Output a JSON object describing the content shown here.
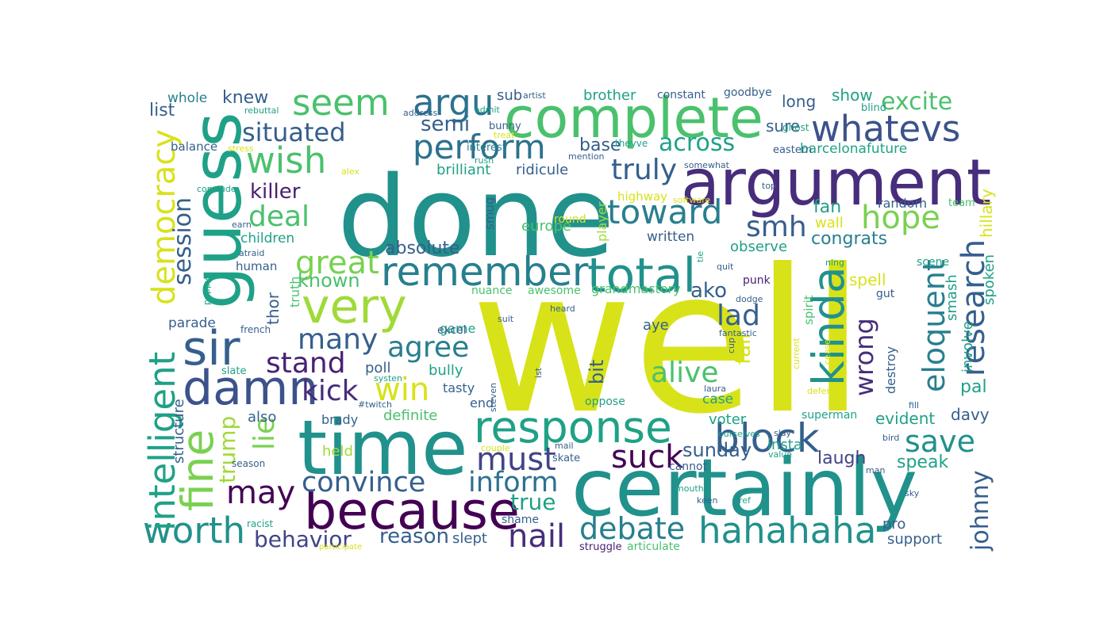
{
  "palette": {
    "yellow": "#d8e219",
    "lime": "#a0da39",
    "green": "#7ad151",
    "emerald": "#4ac16d",
    "sea": "#2db27d",
    "teal": "#1fa187",
    "cyan": "#21918c",
    "steel": "#277f8e",
    "blue": "#2c728e",
    "navy": "#355f8d",
    "indigo": "#3b528b",
    "violet": "#414487",
    "purple": "#472d7b",
    "deep": "#482173",
    "dark": "#440154"
  },
  "words": [
    {
      "text": "well",
      "color": "yellow"
    },
    {
      "text": "done",
      "color": "cyan"
    },
    {
      "text": "time",
      "color": "cyan"
    },
    {
      "text": "certainly",
      "color": "cyan"
    },
    {
      "text": "guess",
      "color": "teal"
    },
    {
      "text": "argument",
      "color": "purple"
    },
    {
      "text": "complete",
      "color": "emerald"
    },
    {
      "text": "because",
      "color": "dark"
    },
    {
      "text": "very",
      "color": "lime"
    },
    {
      "text": "response",
      "color": "teal"
    },
    {
      "text": "total",
      "color": "cyan"
    },
    {
      "text": "hahahaha",
      "color": "cyan"
    },
    {
      "text": "damn",
      "color": "indigo"
    },
    {
      "text": "sir",
      "color": "navy"
    },
    {
      "text": "kinda",
      "color": "cyan"
    },
    {
      "text": "block",
      "color": "navy"
    },
    {
      "text": "whatevs",
      "color": "indigo"
    },
    {
      "text": "remember",
      "color": "steel"
    },
    {
      "text": "fine",
      "color": "green"
    },
    {
      "text": "worth",
      "color": "cyan"
    },
    {
      "text": "intelligent",
      "color": "teal"
    },
    {
      "text": "democracy",
      "color": "yellow"
    },
    {
      "text": "seem",
      "color": "emerald"
    },
    {
      "text": "argu",
      "color": "blue"
    },
    {
      "text": "perform",
      "color": "blue"
    },
    {
      "text": "toward",
      "color": "steel"
    },
    {
      "text": "research",
      "color": "navy"
    },
    {
      "text": "eloquent",
      "color": "steel"
    },
    {
      "text": "save",
      "color": "cyan"
    },
    {
      "text": "nail",
      "color": "purple"
    },
    {
      "text": "debate",
      "color": "steel"
    },
    {
      "text": "convince",
      "color": "navy"
    },
    {
      "text": "inform",
      "color": "blue"
    },
    {
      "text": "wish",
      "color": "emerald"
    },
    {
      "text": "hope",
      "color": "green"
    },
    {
      "text": "suck",
      "color": "dark"
    },
    {
      "text": "must",
      "color": "violet"
    },
    {
      "text": "may",
      "color": "dark"
    },
    {
      "text": "win",
      "color": "yellow"
    },
    {
      "text": "great",
      "color": "green"
    },
    {
      "text": "many",
      "color": "navy"
    },
    {
      "text": "agree",
      "color": "steel"
    },
    {
      "text": "kick",
      "color": "purple"
    },
    {
      "text": "stand",
      "color": "deep"
    },
    {
      "text": "lie",
      "color": "green"
    },
    {
      "text": "wrong",
      "color": "purple"
    },
    {
      "text": "alive",
      "color": "emerald"
    },
    {
      "text": "lad",
      "color": "navy"
    },
    {
      "text": "smh",
      "color": "navy"
    },
    {
      "text": "truly",
      "color": "navy"
    },
    {
      "text": "situated",
      "color": "navy"
    },
    {
      "text": "deal",
      "color": "emerald"
    },
    {
      "text": "session",
      "color": "navy"
    },
    {
      "text": "johnny",
      "color": "navy"
    },
    {
      "text": "across",
      "color": "teal"
    },
    {
      "text": "excite",
      "color": "emerald"
    },
    {
      "text": "behavior",
      "color": "violet"
    },
    {
      "text": "trump",
      "color": "lime"
    },
    {
      "text": "true",
      "color": "teal"
    },
    {
      "text": "reason",
      "color": "navy"
    },
    {
      "text": "semi",
      "color": "navy"
    },
    {
      "text": "killer",
      "color": "deep"
    },
    {
      "text": "known",
      "color": "emerald"
    },
    {
      "text": "absolute",
      "color": "navy"
    },
    {
      "text": "knew",
      "color": "navy"
    },
    {
      "text": "fair",
      "color": "yellow"
    },
    {
      "text": "ako",
      "color": "navy"
    },
    {
      "text": "bit",
      "color": "navy"
    },
    {
      "text": "fan",
      "color": "teal"
    },
    {
      "text": "congrats",
      "color": "steel"
    },
    {
      "text": "sunday",
      "color": "navy"
    },
    {
      "text": "speak",
      "color": "teal"
    },
    {
      "text": "laugh",
      "color": "violet"
    },
    {
      "text": "smash",
      "color": "teal"
    },
    {
      "text": "spell",
      "color": "yellow"
    },
    {
      "text": "hillary",
      "color": "yellow"
    },
    {
      "text": "spoken",
      "color": "teal"
    },
    {
      "text": "involve",
      "color": "teal"
    },
    {
      "text": "evident",
      "color": "teal"
    },
    {
      "text": "davy",
      "color": "navy"
    },
    {
      "text": "pal",
      "color": "teal"
    },
    {
      "text": "destroy",
      "color": "navy"
    },
    {
      "text": "show",
      "color": "teal"
    },
    {
      "text": "long",
      "color": "navy"
    },
    {
      "text": "sure",
      "color": "navy"
    },
    {
      "text": "barcelonafuture",
      "color": "teal"
    },
    {
      "text": "base",
      "color": "navy"
    },
    {
      "text": "brother",
      "color": "teal"
    },
    {
      "text": "sub",
      "color": "navy"
    },
    {
      "text": "list",
      "color": "navy"
    },
    {
      "text": "whole",
      "color": "steel"
    },
    {
      "text": "balance",
      "color": "navy"
    },
    {
      "text": "brilliant",
      "color": "teal"
    },
    {
      "text": "ridicule",
      "color": "navy"
    },
    {
      "text": "bunny",
      "color": "navy"
    },
    {
      "text": "interest",
      "color": "steel"
    },
    {
      "text": "children",
      "color": "teal"
    },
    {
      "text": "human",
      "color": "navy"
    },
    {
      "text": "thor",
      "color": "navy"
    },
    {
      "text": "truth",
      "color": "emerald"
    },
    {
      "text": "parade",
      "color": "navy"
    },
    {
      "text": "structure",
      "color": "navy"
    },
    {
      "text": "also",
      "color": "navy"
    },
    {
      "text": "held",
      "color": "lime"
    },
    {
      "text": "brady",
      "color": "navy"
    },
    {
      "text": "end",
      "color": "navy"
    },
    {
      "text": "definite",
      "color": "emerald"
    },
    {
      "text": "bully",
      "color": "teal"
    },
    {
      "text": "tasty",
      "color": "navy"
    },
    {
      "text": "poll",
      "color": "navy"
    },
    {
      "text": "slept",
      "color": "navy"
    },
    {
      "text": "shame",
      "color": "navy"
    },
    {
      "text": "struggle",
      "color": "deep"
    },
    {
      "text": "articulate",
      "color": "emerald"
    },
    {
      "text": "support",
      "color": "navy"
    },
    {
      "text": "pro",
      "color": "navy"
    },
    {
      "text": "insta",
      "color": "teal"
    },
    {
      "text": "voter",
      "color": "teal"
    },
    {
      "text": "case",
      "color": "teal"
    },
    {
      "text": "aye",
      "color": "navy"
    },
    {
      "text": "observe",
      "color": "teal"
    },
    {
      "text": "written",
      "color": "navy"
    },
    {
      "text": "grandmastory",
      "color": "emerald"
    },
    {
      "text": "awesome",
      "color": "emerald"
    },
    {
      "text": "nuance",
      "color": "emerald"
    },
    {
      "text": "europe",
      "color": "emerald"
    },
    {
      "text": "smug",
      "color": "navy"
    },
    {
      "text": "player",
      "color": "lime"
    },
    {
      "text": "wall",
      "color": "yellow"
    },
    {
      "text": "random",
      "color": "navy"
    },
    {
      "text": "game",
      "color": "teal"
    },
    {
      "text": "excel",
      "color": "navy"
    },
    {
      "text": "skate",
      "color": "navy"
    },
    {
      "text": "oppose",
      "color": "teal"
    },
    {
      "text": "superman",
      "color": "teal"
    },
    {
      "text": "cannot",
      "color": "navy"
    },
    {
      "text": "punk",
      "color": "deep"
    },
    {
      "text": "gut",
      "color": "navy"
    },
    {
      "text": "scene",
      "color": "teal"
    },
    {
      "text": "team",
      "color": "emerald"
    },
    {
      "text": "highway",
      "color": "yellow"
    },
    {
      "text": "round",
      "color": "yellow"
    },
    {
      "text": "constant",
      "color": "navy"
    },
    {
      "text": "goodbye",
      "color": "navy"
    },
    {
      "text": "blind",
      "color": "teal"
    },
    {
      "text": "eastern",
      "color": "navy"
    },
    {
      "text": "ghost",
      "color": "teal"
    },
    {
      "text": "theyve",
      "color": "teal"
    },
    {
      "text": "somewhat",
      "color": "navy"
    },
    {
      "text": "top",
      "color": "navy"
    },
    {
      "text": "software",
      "color": "yellow"
    },
    {
      "text": "rebuttal",
      "color": "teal"
    },
    {
      "text": "address",
      "color": "navy"
    },
    {
      "text": "stress",
      "color": "yellow"
    },
    {
      "text": "rush",
      "color": "teal"
    },
    {
      "text": "alex",
      "color": "yellow"
    },
    {
      "text": "conclude",
      "color": "teal"
    },
    {
      "text": "earn",
      "color": "navy"
    },
    {
      "text": "atraid",
      "color": "navy"
    },
    {
      "text": "french",
      "color": "navy"
    },
    {
      "text": "slate",
      "color": "teal"
    },
    {
      "text": "season",
      "color": "navy"
    },
    {
      "text": "racist",
      "color": "teal"
    },
    {
      "text": "participate",
      "color": "yellow"
    },
    {
      "text": "couple",
      "color": "yellow"
    },
    {
      "text": "mail",
      "color": "navy"
    },
    {
      "text": "steven",
      "color": "navy"
    },
    {
      "text": "#twitch",
      "color": "navy"
    },
    {
      "text": "systen",
      "color": "teal"
    },
    {
      "text": "suit",
      "color": "navy"
    },
    {
      "text": "heard",
      "color": "navy"
    },
    {
      "text": "ist",
      "color": "navy"
    },
    {
      "text": "dodge",
      "color": "navy"
    },
    {
      "text": "quit",
      "color": "navy"
    },
    {
      "text": "tie",
      "color": "teal"
    },
    {
      "text": "fantastic",
      "color": "navy"
    },
    {
      "text": "cup",
      "color": "navy"
    },
    {
      "text": "laura",
      "color": "navy"
    },
    {
      "text": "fill",
      "color": "navy"
    },
    {
      "text": "ourselves",
      "color": "teal"
    },
    {
      "text": "mouth",
      "color": "teal"
    },
    {
      "text": "keen",
      "color": "navy"
    },
    {
      "text": "ref",
      "color": "teal"
    },
    {
      "text": "value",
      "color": "teal"
    },
    {
      "text": "man",
      "color": "navy"
    },
    {
      "text": "bird",
      "color": "navy"
    },
    {
      "text": "sky",
      "color": "navy"
    },
    {
      "text": "defend",
      "color": "yellow"
    },
    {
      "text": "current",
      "color": "yellow"
    },
    {
      "text": "cease",
      "color": "yellow"
    },
    {
      "text": "spirit",
      "color": "emerald"
    },
    {
      "text": "nlng",
      "color": "teal"
    },
    {
      "text": "puppy",
      "color": "teal"
    },
    {
      "text": "slay",
      "color": "navy"
    },
    {
      "text": "treat",
      "color": "yellow"
    },
    {
      "text": "mention",
      "color": "navy"
    },
    {
      "text": "artist",
      "color": "navy"
    },
    {
      "text": "admit",
      "color": "teal"
    }
  ]
}
